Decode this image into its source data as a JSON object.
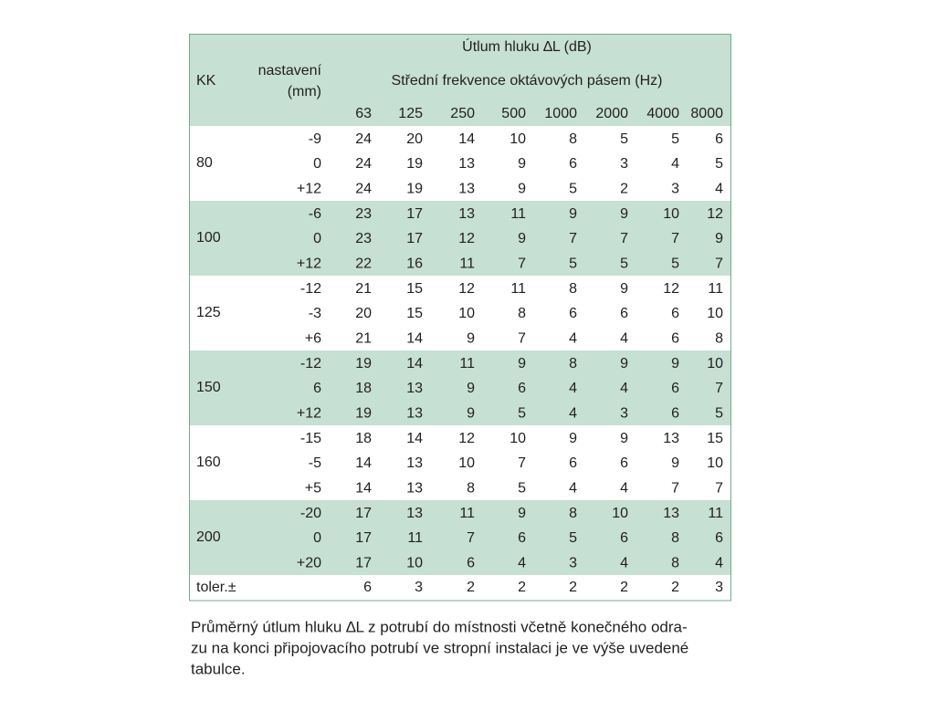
{
  "header": {
    "title": "Útlum hluku ∆L (dB)",
    "subtitle": "Střední frekvence oktávových pásem (Hz)",
    "kk": "KK",
    "setting": [
      "nastavení",
      "(mm)"
    ],
    "frequencies": [
      63,
      125,
      250,
      500,
      1000,
      2000,
      4000,
      8000
    ]
  },
  "groups": [
    {
      "kk": "80",
      "rows": [
        {
          "setting": "-9",
          "values": [
            24,
            20,
            14,
            10,
            8,
            5,
            5,
            6
          ]
        },
        {
          "setting": "0",
          "values": [
            24,
            19,
            13,
            9,
            6,
            3,
            4,
            5
          ]
        },
        {
          "setting": "+12",
          "values": [
            24,
            19,
            13,
            9,
            5,
            2,
            3,
            4
          ]
        }
      ]
    },
    {
      "kk": "100",
      "rows": [
        {
          "setting": "-6",
          "values": [
            23,
            17,
            13,
            11,
            9,
            9,
            10,
            12
          ]
        },
        {
          "setting": "0",
          "values": [
            23,
            17,
            12,
            9,
            7,
            7,
            7,
            9
          ]
        },
        {
          "setting": "+12",
          "values": [
            22,
            16,
            11,
            7,
            5,
            5,
            5,
            7
          ]
        }
      ]
    },
    {
      "kk": "125",
      "rows": [
        {
          "setting": "-12",
          "values": [
            21,
            15,
            12,
            11,
            8,
            9,
            12,
            11
          ]
        },
        {
          "setting": "-3",
          "values": [
            20,
            15,
            10,
            8,
            6,
            6,
            6,
            10
          ]
        },
        {
          "setting": "+6",
          "values": [
            21,
            14,
            9,
            7,
            4,
            4,
            6,
            8
          ]
        }
      ]
    },
    {
      "kk": "150",
      "rows": [
        {
          "setting": "-12",
          "values": [
            19,
            14,
            11,
            9,
            8,
            9,
            9,
            10
          ]
        },
        {
          "setting": "6",
          "values": [
            18,
            13,
            9,
            6,
            4,
            4,
            6,
            7
          ]
        },
        {
          "setting": "+12",
          "values": [
            19,
            13,
            9,
            5,
            4,
            3,
            6,
            5
          ]
        }
      ]
    },
    {
      "kk": "160",
      "rows": [
        {
          "setting": "-15",
          "values": [
            18,
            14,
            12,
            10,
            9,
            9,
            13,
            15
          ]
        },
        {
          "setting": "-5",
          "values": [
            14,
            13,
            10,
            7,
            6,
            6,
            9,
            10
          ]
        },
        {
          "setting": "+5",
          "values": [
            14,
            13,
            8,
            5,
            4,
            4,
            7,
            7
          ]
        }
      ]
    },
    {
      "kk": "200",
      "rows": [
        {
          "setting": "-20",
          "values": [
            17,
            13,
            11,
            9,
            8,
            10,
            13,
            11
          ]
        },
        {
          "setting": "0",
          "values": [
            17,
            11,
            7,
            6,
            5,
            6,
            8,
            6
          ]
        },
        {
          "setting": "+20",
          "values": [
            17,
            10,
            6,
            4,
            3,
            4,
            8,
            4
          ]
        }
      ]
    }
  ],
  "tolerance": {
    "label": "toler.±",
    "values": [
      6,
      3,
      2,
      2,
      2,
      2,
      2,
      3
    ]
  },
  "caption": [
    "Průměrný útlum hluku ∆L z potrubí do místnosti včetně konečného odra-",
    "zu na konci připojovacího potrubí ve stropní instalaci je ve výše uvedené",
    "tabulce."
  ]
}
